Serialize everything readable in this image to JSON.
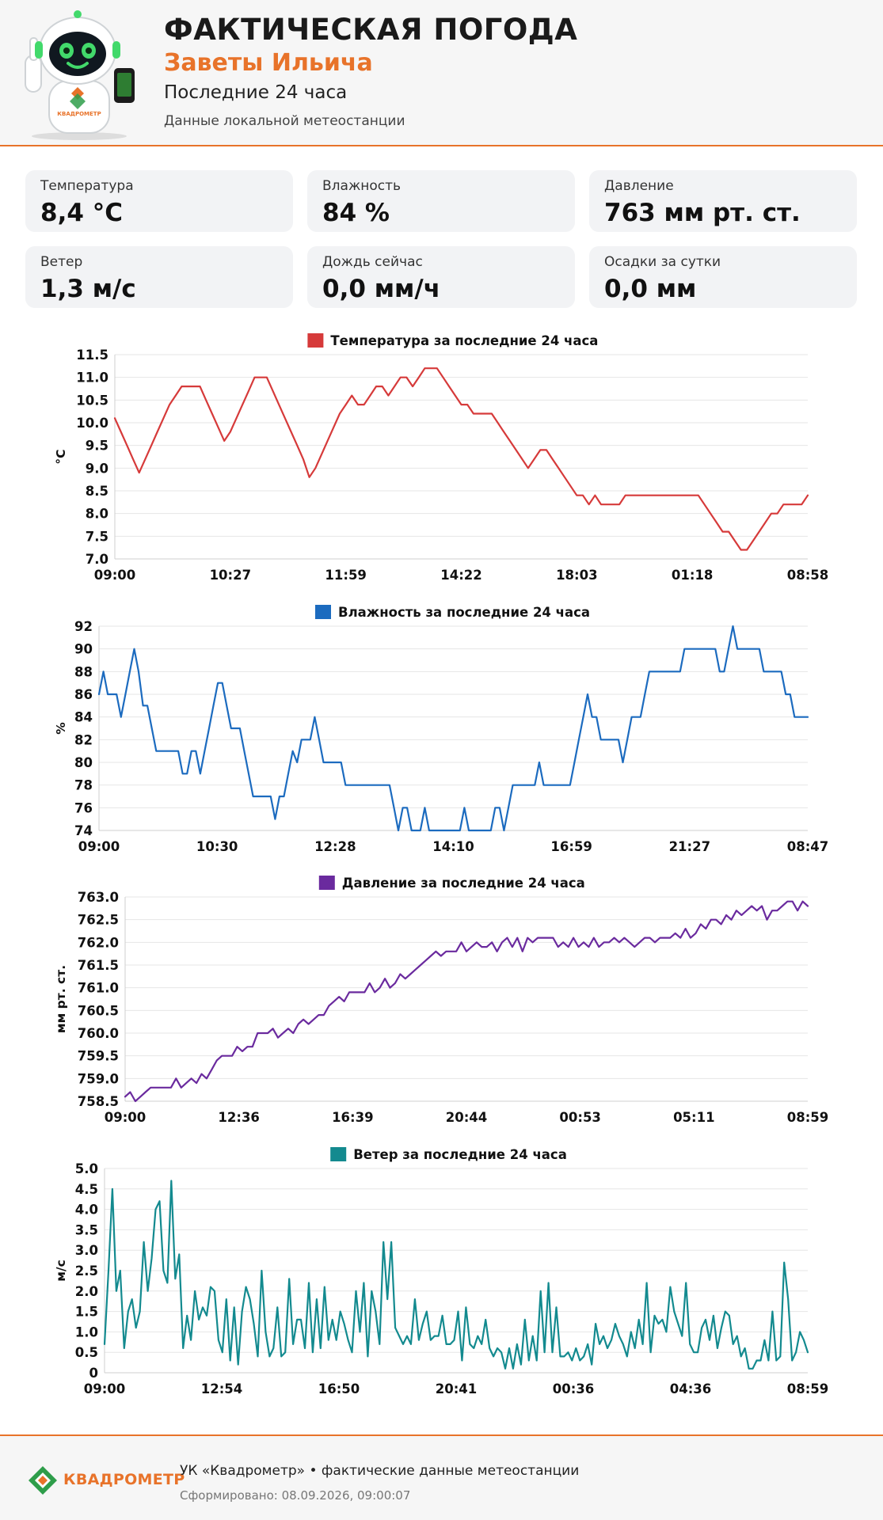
{
  "header": {
    "title": "ФАКТИЧЕСКАЯ ПОГОДА",
    "place": "Заветы Ильича",
    "period": "Последние 24 часа",
    "source": "Данные локальной метеостанции",
    "mascot_badge": "КВАДРОМЕТР"
  },
  "cards": [
    {
      "label": "Температура",
      "value": "8,4 °C"
    },
    {
      "label": "Влажность",
      "value": "84 %"
    },
    {
      "label": "Давление",
      "value": "763 мм рт. ст."
    },
    {
      "label": "Ветер",
      "value": "1,3 м/с"
    },
    {
      "label": "Дождь сейчас",
      "value": "0,0 мм/ч"
    },
    {
      "label": "Осадки за сутки",
      "value": "0,0 мм"
    }
  ],
  "chart_data": [
    {
      "type": "line",
      "title": "Температура за последние 24 часа",
      "color": "#d63a3a",
      "ylabel": "°C",
      "ylim": [
        7.0,
        11.5
      ],
      "yticks": [
        "7.0",
        "7.5",
        "8.0",
        "8.5",
        "9.0",
        "9.5",
        "10.0",
        "10.5",
        "11.0",
        "11.5"
      ],
      "xticks": [
        "09:00",
        "10:27",
        "11:59",
        "14:22",
        "18:03",
        "01:18",
        "08:58"
      ],
      "grid": true,
      "legend": "top-center",
      "values": [
        10.1,
        9.8,
        9.5,
        9.2,
        8.9,
        9.2,
        9.5,
        9.8,
        10.1,
        10.4,
        10.6,
        10.8,
        10.8,
        10.8,
        10.8,
        10.5,
        10.2,
        9.9,
        9.6,
        9.8,
        10.1,
        10.4,
        10.7,
        11.0,
        11.0,
        11.0,
        10.7,
        10.4,
        10.1,
        9.8,
        9.5,
        9.2,
        8.8,
        9.0,
        9.3,
        9.6,
        9.9,
        10.2,
        10.4,
        10.6,
        10.4,
        10.4,
        10.6,
        10.8,
        10.8,
        10.6,
        10.8,
        11.0,
        11.0,
        10.8,
        11.0,
        11.2,
        11.2,
        11.2,
        11.0,
        10.8,
        10.6,
        10.4,
        10.4,
        10.2,
        10.2,
        10.2,
        10.2,
        10.0,
        9.8,
        9.6,
        9.4,
        9.2,
        9.0,
        9.2,
        9.4,
        9.4,
        9.2,
        9.0,
        8.8,
        8.6,
        8.4,
        8.4,
        8.2,
        8.4,
        8.2,
        8.2,
        8.2,
        8.2,
        8.4,
        8.4,
        8.4,
        8.4,
        8.4,
        8.4,
        8.4,
        8.4,
        8.4,
        8.4,
        8.4,
        8.4,
        8.4,
        8.2,
        8.0,
        7.8,
        7.6,
        7.6,
        7.4,
        7.2,
        7.2,
        7.4,
        7.6,
        7.8,
        8.0,
        8.0,
        8.2,
        8.2,
        8.2,
        8.2,
        8.4
      ]
    },
    {
      "type": "line",
      "title": "Влажность за последние 24 часа",
      "color": "#1c6bbf",
      "ylabel": "%",
      "ylim": [
        74,
        92
      ],
      "yticks": [
        "74",
        "76",
        "78",
        "80",
        "82",
        "84",
        "86",
        "88",
        "90",
        "92"
      ],
      "xticks": [
        "09:00",
        "10:30",
        "12:28",
        "14:10",
        "16:59",
        "21:27",
        "08:47"
      ],
      "grid": true,
      "legend": "top-center",
      "values": [
        86,
        88,
        86,
        86,
        86,
        84,
        86,
        88,
        90,
        88,
        85,
        85,
        83,
        81,
        81,
        81,
        81,
        81,
        81,
        79,
        79,
        81,
        81,
        79,
        81,
        83,
        85,
        87,
        87,
        85,
        83,
        83,
        83,
        81,
        79,
        77,
        77,
        77,
        77,
        77,
        75,
        77,
        77,
        79,
        81,
        80,
        82,
        82,
        82,
        84,
        82,
        80,
        80,
        80,
        80,
        80,
        78,
        78,
        78,
        78,
        78,
        78,
        78,
        78,
        78,
        78,
        78,
        76,
        74,
        76,
        76,
        74,
        74,
        74,
        76,
        74,
        74,
        74,
        74,
        74,
        74,
        74,
        74,
        76,
        74,
        74,
        74,
        74,
        74,
        74,
        76,
        76,
        74,
        76,
        78,
        78,
        78,
        78,
        78,
        78,
        80,
        78,
        78,
        78,
        78,
        78,
        78,
        78,
        80,
        82,
        84,
        86,
        84,
        84,
        82,
        82,
        82,
        82,
        82,
        80,
        82,
        84,
        84,
        84,
        86,
        88,
        88,
        88,
        88,
        88,
        88,
        88,
        88,
        90,
        90,
        90,
        90,
        90,
        90,
        90,
        90,
        88,
        88,
        90,
        92,
        90,
        90,
        90,
        90,
        90,
        90,
        88,
        88,
        88,
        88,
        88,
        86,
        86,
        84,
        84,
        84,
        84
      ]
    },
    {
      "type": "line",
      "title": "Давление за последние 24 часа",
      "color": "#6a2a9e",
      "ylabel": "мм рт. ст.",
      "ylim": [
        758.5,
        763.0
      ],
      "yticks": [
        "758.5",
        "759.0",
        "759.5",
        "760.0",
        "760.5",
        "761.0",
        "761.5",
        "762.0",
        "762.5",
        "763.0"
      ],
      "xticks": [
        "09:00",
        "12:36",
        "16:39",
        "20:44",
        "00:53",
        "05:11",
        "08:59"
      ],
      "grid": true,
      "legend": "top-center",
      "values": [
        758.6,
        758.7,
        758.5,
        758.6,
        758.7,
        758.8,
        758.8,
        758.8,
        758.8,
        758.8,
        759.0,
        758.8,
        758.9,
        759.0,
        758.9,
        759.1,
        759.0,
        759.2,
        759.4,
        759.5,
        759.5,
        759.5,
        759.7,
        759.6,
        759.7,
        759.7,
        760.0,
        760.0,
        760.0,
        760.1,
        759.9,
        760.0,
        760.1,
        760.0,
        760.2,
        760.3,
        760.2,
        760.3,
        760.4,
        760.4,
        760.6,
        760.7,
        760.8,
        760.7,
        760.9,
        760.9,
        760.9,
        760.9,
        761.1,
        760.9,
        761.0,
        761.2,
        761.0,
        761.1,
        761.3,
        761.2,
        761.3,
        761.4,
        761.5,
        761.6,
        761.7,
        761.8,
        761.7,
        761.8,
        761.8,
        761.8,
        762.0,
        761.8,
        761.9,
        762.0,
        761.9,
        761.9,
        762.0,
        761.8,
        762.0,
        762.1,
        761.9,
        762.1,
        761.8,
        762.1,
        762.0,
        762.1,
        762.1,
        762.1,
        762.1,
        761.9,
        762.0,
        761.9,
        762.1,
        761.9,
        762.0,
        761.9,
        762.1,
        761.9,
        762.0,
        762.0,
        762.1,
        762.0,
        762.1,
        762.0,
        761.9,
        762.0,
        762.1,
        762.1,
        762.0,
        762.1,
        762.1,
        762.1,
        762.2,
        762.1,
        762.3,
        762.1,
        762.2,
        762.4,
        762.3,
        762.5,
        762.5,
        762.4,
        762.6,
        762.5,
        762.7,
        762.6,
        762.7,
        762.8,
        762.7,
        762.8,
        762.5,
        762.7,
        762.7,
        762.8,
        762.9,
        762.9,
        762.7,
        762.9,
        762.8
      ]
    },
    {
      "type": "line",
      "title": "Ветер за последние 24 часа",
      "color": "#138a8f",
      "ylabel": "м/с",
      "ylim": [
        0,
        5.0
      ],
      "yticks": [
        "0",
        "0.5",
        "1.0",
        "1.5",
        "2.0",
        "2.5",
        "3.0",
        "3.5",
        "4.0",
        "4.5",
        "5.0"
      ],
      "xticks": [
        "09:00",
        "12:54",
        "16:50",
        "20:41",
        "00:36",
        "04:36",
        "08:59"
      ],
      "grid": true,
      "legend": "top-center",
      "values": [
        0.7,
        2.5,
        4.5,
        2.0,
        2.5,
        0.6,
        1.5,
        1.8,
        1.1,
        1.5,
        3.2,
        2.0,
        2.8,
        4.0,
        4.2,
        2.5,
        2.2,
        4.7,
        2.3,
        2.9,
        0.6,
        1.4,
        0.8,
        2.0,
        1.3,
        1.6,
        1.4,
        2.1,
        2.0,
        0.8,
        0.5,
        1.8,
        0.3,
        1.6,
        0.2,
        1.5,
        2.1,
        1.8,
        1.2,
        0.4,
        2.5,
        1.0,
        0.4,
        0.6,
        1.6,
        0.4,
        0.5,
        2.3,
        0.7,
        1.3,
        1.3,
        0.6,
        2.2,
        0.5,
        1.8,
        0.6,
        2.1,
        0.8,
        1.3,
        0.8,
        1.5,
        1.2,
        0.8,
        0.5,
        2.0,
        1.0,
        2.2,
        0.4,
        2.0,
        1.5,
        0.7,
        3.2,
        1.8,
        3.2,
        1.1,
        0.9,
        0.7,
        0.9,
        0.7,
        1.8,
        0.8,
        1.2,
        1.5,
        0.8,
        0.9,
        0.9,
        1.4,
        0.7,
        0.7,
        0.8,
        1.5,
        0.3,
        1.6,
        0.7,
        0.6,
        0.9,
        0.7,
        1.3,
        0.6,
        0.4,
        0.6,
        0.5,
        0.1,
        0.6,
        0.1,
        0.7,
        0.2,
        1.3,
        0.3,
        0.9,
        0.3,
        2.0,
        0.5,
        2.2,
        0.5,
        1.6,
        0.4,
        0.4,
        0.5,
        0.3,
        0.6,
        0.3,
        0.4,
        0.7,
        0.2,
        1.2,
        0.7,
        0.9,
        0.6,
        0.8,
        1.2,
        0.9,
        0.7,
        0.4,
        1.0,
        0.6,
        1.3,
        0.7,
        2.2,
        0.5,
        1.4,
        1.2,
        1.3,
        1.0,
        2.1,
        1.5,
        1.2,
        0.9,
        2.2,
        0.7,
        0.5,
        0.5,
        1.1,
        1.3,
        0.8,
        1.4,
        0.6,
        1.1,
        1.5,
        1.4,
        0.7,
        0.9,
        0.4,
        0.6,
        0.1,
        0.1,
        0.3,
        0.3,
        0.8,
        0.3,
        1.5,
        0.3,
        0.4,
        2.7,
        1.8,
        0.3,
        0.5,
        1.0,
        0.8,
        0.5
      ]
    }
  ],
  "footer": {
    "brand": "КВАДРОМЕТР",
    "line1": "УК «Квадрометр» • фактические данные метеостанции",
    "line2": "Сформировано: 08.09.2026, 09:00:07"
  }
}
